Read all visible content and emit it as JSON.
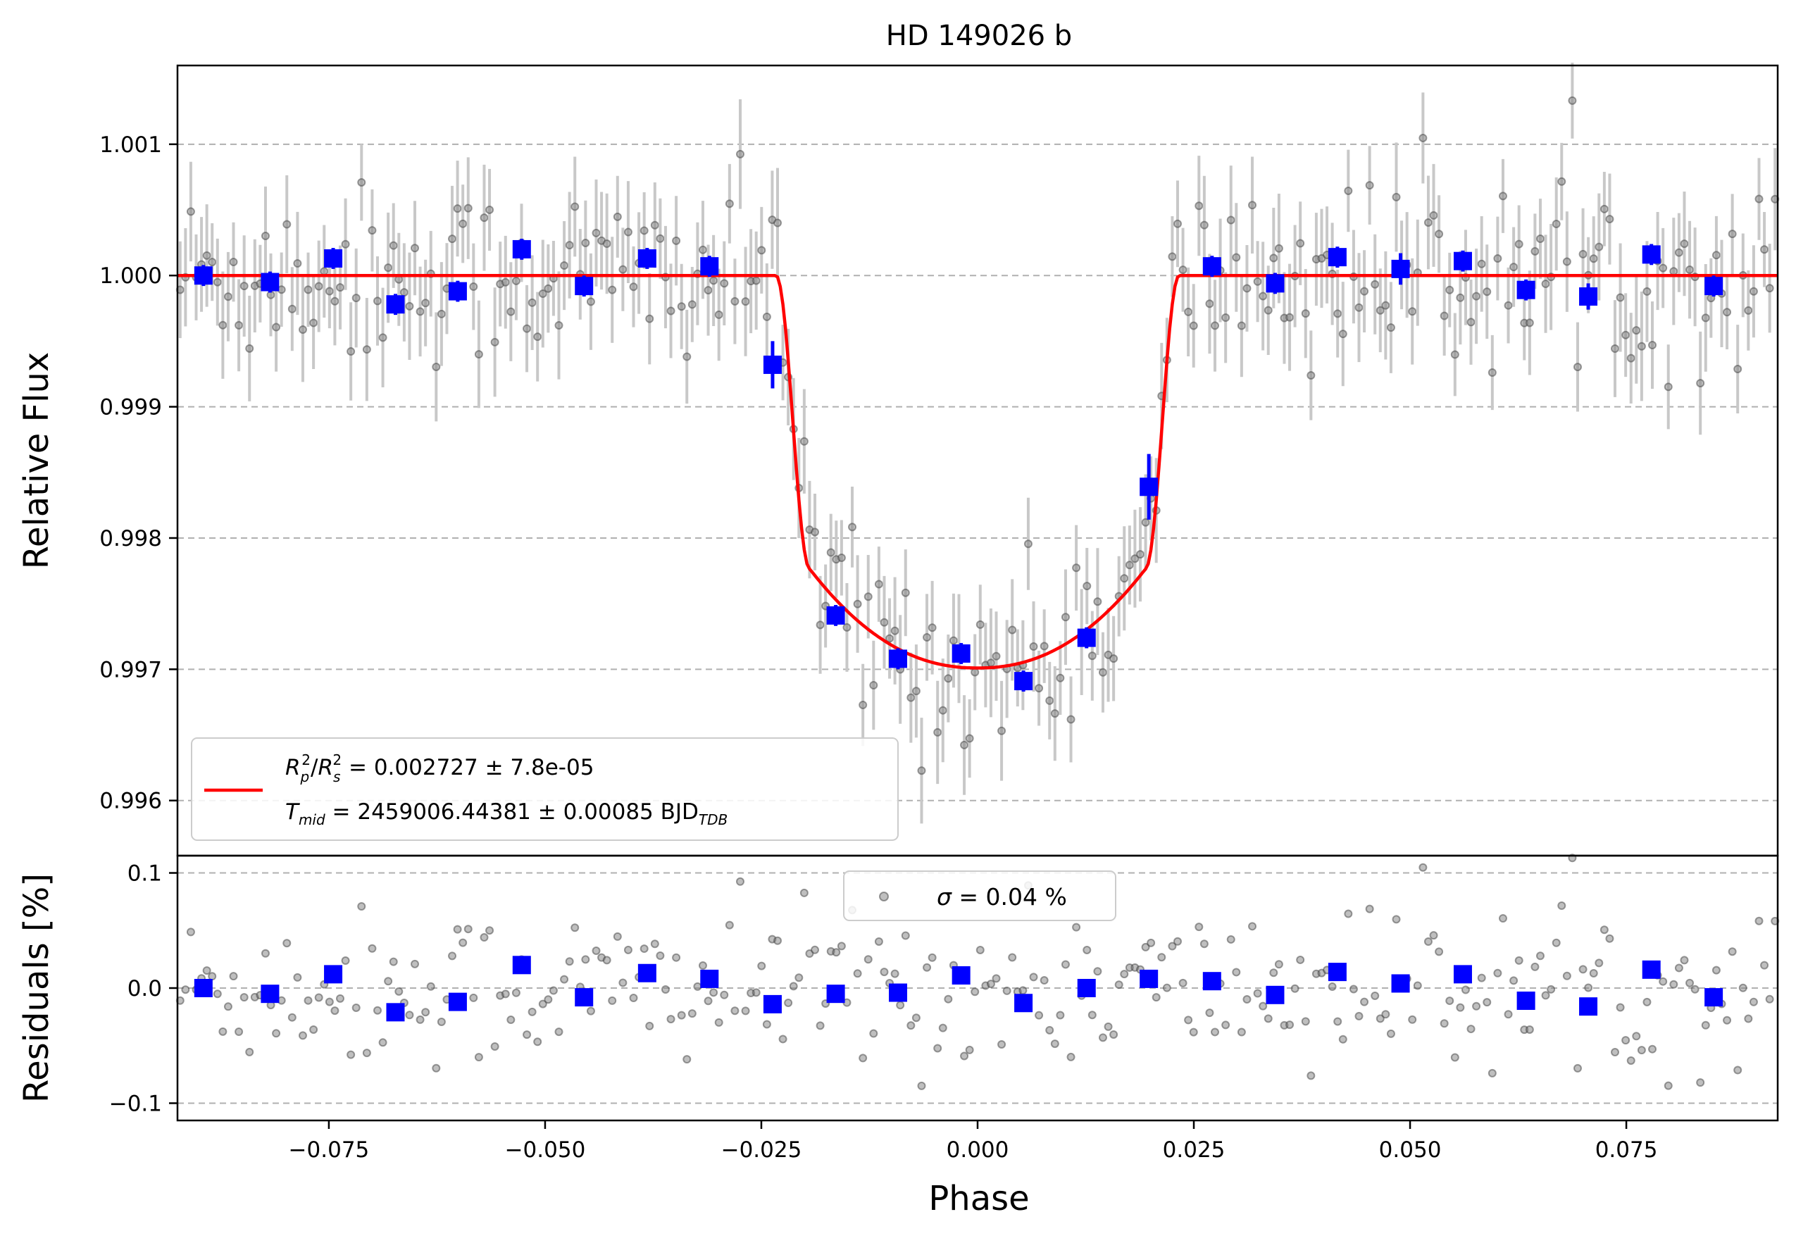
{
  "colors": {
    "model": "#ff0000",
    "binned": "#0000ff",
    "raw_points": "#808080",
    "raw_errorbars": "#c8c8c8",
    "grid": "#b0b0b0",
    "axes": "#000000"
  },
  "chart_data": [
    {
      "type": "scatter",
      "panel": "flux",
      "title": "HD 149026 b",
      "xlabel": "",
      "ylabel": "Relative Flux",
      "xlim": [
        -0.0925,
        0.0925
      ],
      "ylim": [
        0.99558,
        1.0016
      ],
      "yticks": [
        0.996,
        0.997,
        0.998,
        0.999,
        1.0,
        1.001
      ],
      "ytick_labels": [
        "0.996",
        "0.997",
        "0.998",
        "0.999",
        "1.000",
        "1.001"
      ],
      "grid": "horizontal dashed",
      "legend_position": "lower-left",
      "legend": {
        "entry_symbol": "red line",
        "line1": {
          "lhs_base1": "R",
          "lhs_sub1": "p",
          "lhs_sup1": "2",
          "lhs_slash": "/",
          "lhs_base2": "R",
          "lhs_sub2": "s",
          "lhs_sup2": "2",
          "value": " = 0.002727 ± 7.8e-05"
        },
        "line2": {
          "lhs_base": "T",
          "lhs_sub": "mid",
          "value": " = 2459006.44381 ± 0.00085 BJD",
          "unit_sub": "TDB"
        }
      },
      "model": {
        "depth": 0.002727,
        "t14_half": 0.0233,
        "t23_half": 0.0194,
        "bottom_flux": 0.99701,
        "limb_darkening_shape": "curved bottom"
      },
      "binned": {
        "x": [
          -0.0895,
          -0.0818,
          -0.0745,
          -0.0673,
          -0.0601,
          -0.0527,
          -0.0455,
          -0.0382,
          -0.031,
          -0.0237,
          -0.0164,
          -0.0092,
          -0.0019,
          0.0053,
          0.0126,
          0.0198,
          0.0271,
          0.0344,
          0.0416,
          0.0489,
          0.0561,
          0.0634,
          0.0706,
          0.0779,
          0.0851
        ],
        "y": [
          1.0,
          0.99995,
          1.00013,
          0.99978,
          0.99988,
          1.0002,
          0.99992,
          1.00013,
          1.00007,
          0.99932,
          0.99741,
          0.99708,
          0.99712,
          0.99691,
          0.99724,
          0.99839,
          1.00007,
          0.99994,
          1.00014,
          1.00005,
          1.00011,
          0.99989,
          0.99984,
          1.00016,
          0.99992
        ],
        "yerr": [
          8e-05,
          8e-05,
          8e-05,
          8e-05,
          8e-05,
          8e-05,
          8e-05,
          8e-05,
          8e-05,
          0.00018,
          8e-05,
          8e-05,
          8e-05,
          8e-05,
          8e-05,
          0.00025,
          8e-05,
          8e-05,
          8e-05,
          0.00012,
          8e-05,
          8e-05,
          0.0001,
          8e-05,
          8e-05
        ]
      }
    },
    {
      "type": "scatter",
      "panel": "residuals",
      "xlabel": "Phase",
      "ylabel": "Residuals [%]",
      "xlim": [
        -0.0925,
        0.0925
      ],
      "ylim": [
        -0.115,
        0.115
      ],
      "xticks": [
        -0.075,
        -0.05,
        -0.025,
        0.0,
        0.025,
        0.05,
        0.075
      ],
      "xtick_labels": [
        "−0.075",
        "−0.050",
        "−0.025",
        "0.000",
        "0.025",
        "0.050",
        "0.075"
      ],
      "yticks": [
        -0.1,
        0.0,
        0.1
      ],
      "ytick_labels": [
        "−0.1",
        "0.0",
        "0.1"
      ],
      "grid": "horizontal dashed",
      "legend_position": "upper-center",
      "legend": {
        "sigma_symbol": "σ",
        "value": " = 0.04 %"
      },
      "raw_scatter_sigma_percent": 0.04,
      "binned": {
        "x": [
          -0.0895,
          -0.0818,
          -0.0745,
          -0.0673,
          -0.0601,
          -0.0527,
          -0.0455,
          -0.0382,
          -0.031,
          -0.0237,
          -0.0164,
          -0.0092,
          -0.0019,
          0.0053,
          0.0126,
          0.0198,
          0.0271,
          0.0344,
          0.0416,
          0.0489,
          0.0561,
          0.0634,
          0.0706,
          0.0779,
          0.0851
        ],
        "y": [
          0.0,
          -0.005,
          0.012,
          -0.021,
          -0.012,
          0.02,
          -0.008,
          0.013,
          0.008,
          -0.014,
          -0.005,
          -0.004,
          0.011,
          -0.013,
          0.0,
          0.008,
          0.006,
          -0.006,
          0.014,
          0.004,
          0.012,
          -0.011,
          -0.016,
          0.016,
          -0.008
        ]
      }
    }
  ]
}
